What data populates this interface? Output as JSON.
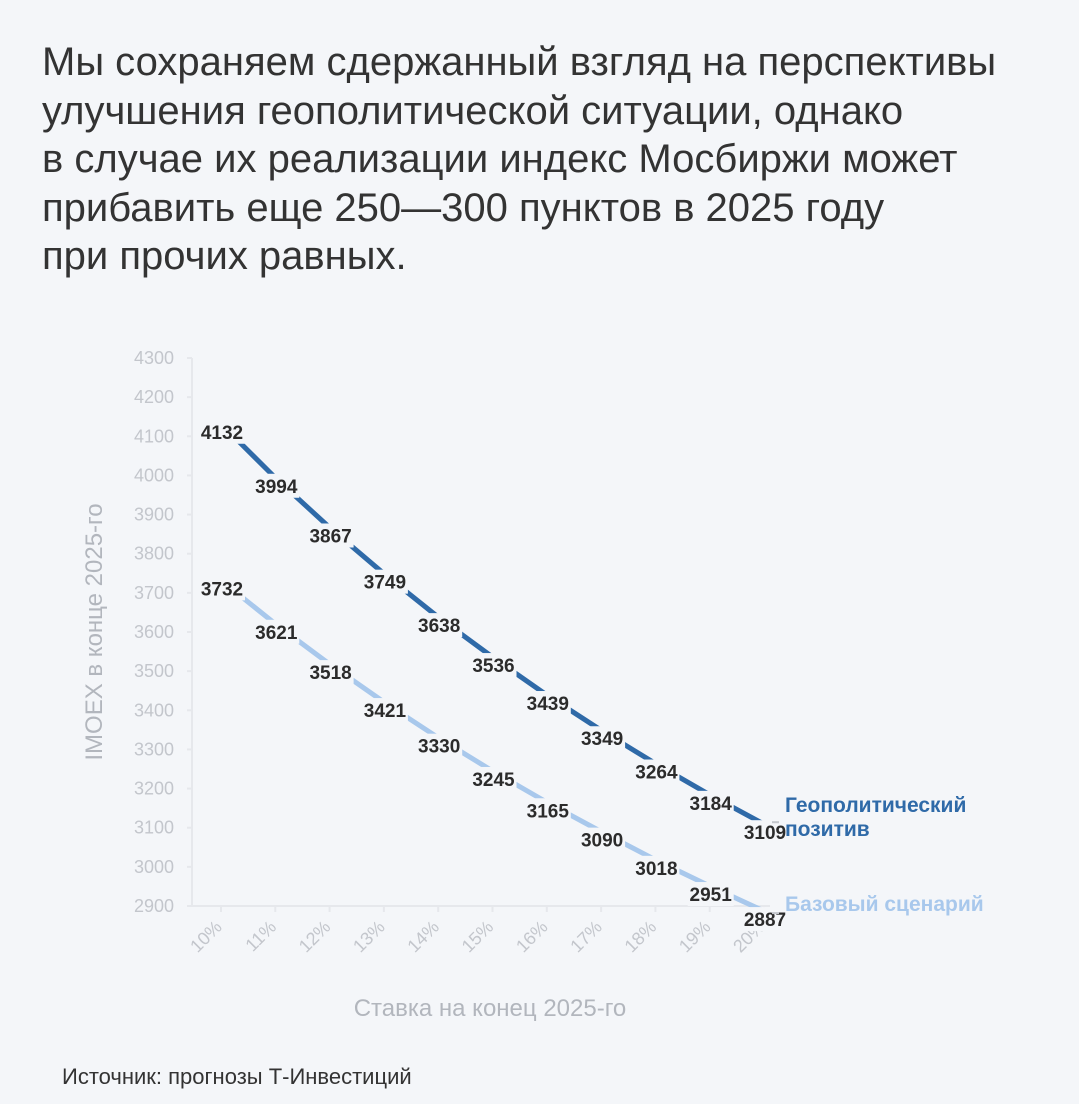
{
  "headline": {
    "lines": [
      "Мы сохраняем сдержанный взгляд на перспективы",
      "улучшения геополитической ситуации, однако",
      "в случае их реализации индекс Мосбиржи может",
      "прибавить еще 250—300 пунктов в 2025 году",
      "при прочих равных."
    ]
  },
  "source": "Источник: прогнозы Т-Инвестиций",
  "colors": {
    "series_dark": "#2f6aa8",
    "series_light": "#a8c8ec",
    "legend_dark": "#2f6aa8",
    "legend_light": "#a8c8ec",
    "axis": "#e6e8ec"
  },
  "chart_data": {
    "type": "line",
    "categories": [
      "10%",
      "11%",
      "12%",
      "13%",
      "14%",
      "15%",
      "16%",
      "17%",
      "18%",
      "19%",
      "20%"
    ],
    "series": [
      {
        "name": "Геополитический позитив",
        "legend_lines": [
          "Геополитический",
          "позитив"
        ],
        "values": [
          4132,
          3994,
          3867,
          3749,
          3638,
          3536,
          3439,
          3349,
          3264,
          3184,
          3109
        ]
      },
      {
        "name": "Базовый сценарий",
        "legend_lines": [
          "Базовый сценарий"
        ],
        "values": [
          3732,
          3621,
          3518,
          3421,
          3330,
          3245,
          3165,
          3090,
          3018,
          2951,
          2887
        ]
      }
    ],
    "yticks": [
      2900,
      3000,
      3100,
      3200,
      3300,
      3400,
      3500,
      3600,
      3700,
      3800,
      3900,
      4000,
      4100,
      4200,
      4300
    ],
    "ylim": [
      2900,
      4300
    ],
    "xlabel": "Ставка на конец 2025-го",
    "ylabel": "IMOEX в конце 2025-го",
    "title": "",
    "grid": false,
    "legend": "right, at line ends"
  }
}
